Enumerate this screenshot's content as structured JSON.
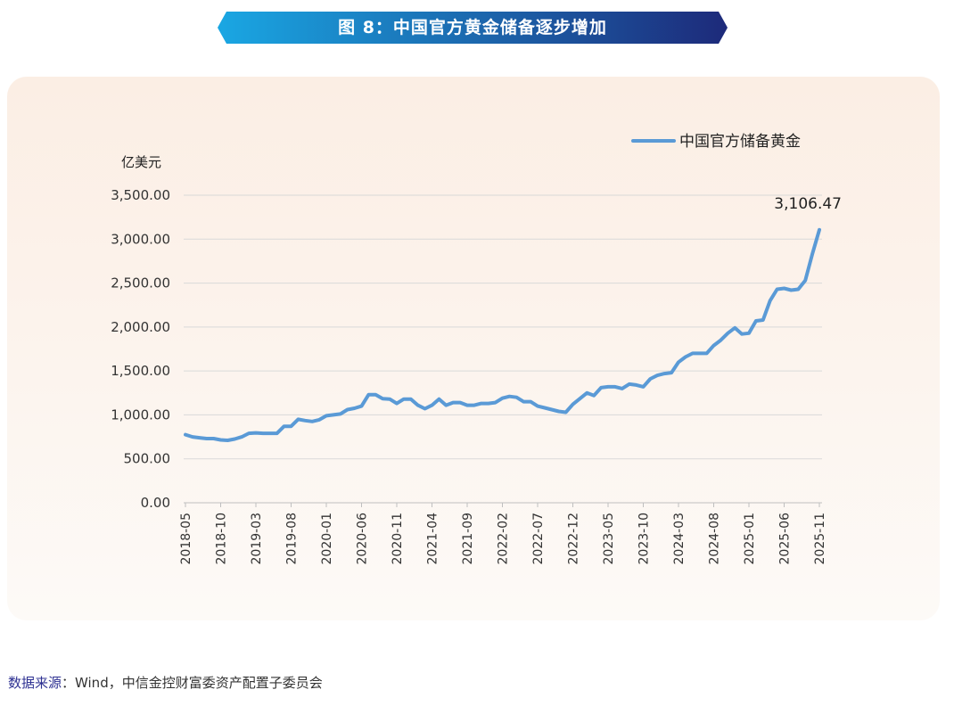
{
  "header": {
    "title": "图 8：中国官方黄金储备逐步增加",
    "gradient_from": "#1aa7e3",
    "gradient_to": "#1d2a7a"
  },
  "footer": {
    "source_label": "数据来源",
    "source_text": "：Wind，中信金控财富委资产配置子委员会"
  },
  "colors": {
    "line": "#5a9ad6",
    "grid": "#d9d9d9",
    "axis_text": "#333333"
  },
  "chart_data": {
    "type": "line",
    "title": "",
    "xlabel": "",
    "ylabel": "亿美元",
    "ylim": [
      0,
      3500
    ],
    "yticks": [
      "0.00",
      "500.00",
      "1,000.00",
      "1,500.00",
      "2,000.00",
      "2,500.00",
      "3,000.00",
      "3,500.00"
    ],
    "ytick_values": [
      0,
      500,
      1000,
      1500,
      2000,
      2500,
      3000,
      3500
    ],
    "xtick_labels": [
      "2018-05",
      "2018-10",
      "2019-03",
      "2019-08",
      "2020-01",
      "2020-06",
      "2020-11",
      "2021-04",
      "2021-09",
      "2022-02",
      "2022-07",
      "2022-12",
      "2023-05",
      "2023-10",
      "2024-03",
      "2024-08",
      "2025-01",
      "2025-06",
      "2025-11"
    ],
    "grid": true,
    "legend_position": "top-right",
    "annotation": "3,106.47",
    "series": [
      {
        "name": "中国官方储备黄金",
        "color": "#5a9ad6",
        "x": [
          "2018-05",
          "2018-06",
          "2018-07",
          "2018-08",
          "2018-09",
          "2018-10",
          "2018-11",
          "2018-12",
          "2019-01",
          "2019-02",
          "2019-03",
          "2019-04",
          "2019-05",
          "2019-06",
          "2019-07",
          "2019-08",
          "2019-09",
          "2019-10",
          "2019-11",
          "2019-12",
          "2020-01",
          "2020-02",
          "2020-03",
          "2020-04",
          "2020-05",
          "2020-06",
          "2020-07",
          "2020-08",
          "2020-09",
          "2020-10",
          "2020-11",
          "2020-12",
          "2021-01",
          "2021-02",
          "2021-03",
          "2021-04",
          "2021-05",
          "2021-06",
          "2021-07",
          "2021-08",
          "2021-09",
          "2021-10",
          "2021-11",
          "2021-12",
          "2022-01",
          "2022-02",
          "2022-03",
          "2022-04",
          "2022-05",
          "2022-06",
          "2022-07",
          "2022-08",
          "2022-09",
          "2022-10",
          "2022-11",
          "2022-12",
          "2023-01",
          "2023-02",
          "2023-03",
          "2023-04",
          "2023-05",
          "2023-06",
          "2023-07",
          "2023-08",
          "2023-09",
          "2023-10",
          "2023-11",
          "2023-12",
          "2024-01",
          "2024-02",
          "2024-03",
          "2024-04",
          "2024-05",
          "2024-06",
          "2024-07",
          "2024-08",
          "2024-09",
          "2024-10",
          "2024-11",
          "2024-12",
          "2025-01",
          "2025-02",
          "2025-03",
          "2025-04",
          "2025-05",
          "2025-06",
          "2025-07",
          "2025-08",
          "2025-09",
          "2025-10",
          "2025-11"
        ],
        "values": [
          775,
          750,
          740,
          730,
          730,
          715,
          710,
          725,
          750,
          790,
          795,
          790,
          790,
          790,
          870,
          870,
          950,
          935,
          925,
          945,
          990,
          1000,
          1010,
          1060,
          1075,
          1100,
          1230,
          1230,
          1185,
          1180,
          1130,
          1180,
          1180,
          1110,
          1070,
          1110,
          1180,
          1110,
          1140,
          1140,
          1110,
          1110,
          1130,
          1130,
          1140,
          1190,
          1210,
          1200,
          1150,
          1150,
          1100,
          1080,
          1060,
          1040,
          1030,
          1120,
          1185,
          1250,
          1220,
          1310,
          1320,
          1320,
          1300,
          1350,
          1340,
          1320,
          1410,
          1450,
          1470,
          1480,
          1600,
          1660,
          1700,
          1700,
          1700,
          1790,
          1850,
          1930,
          1990,
          1920,
          1930,
          2070,
          2080,
          2300,
          2430,
          2440,
          2420,
          2430,
          2530,
          2830,
          3106.47
        ]
      }
    ]
  }
}
